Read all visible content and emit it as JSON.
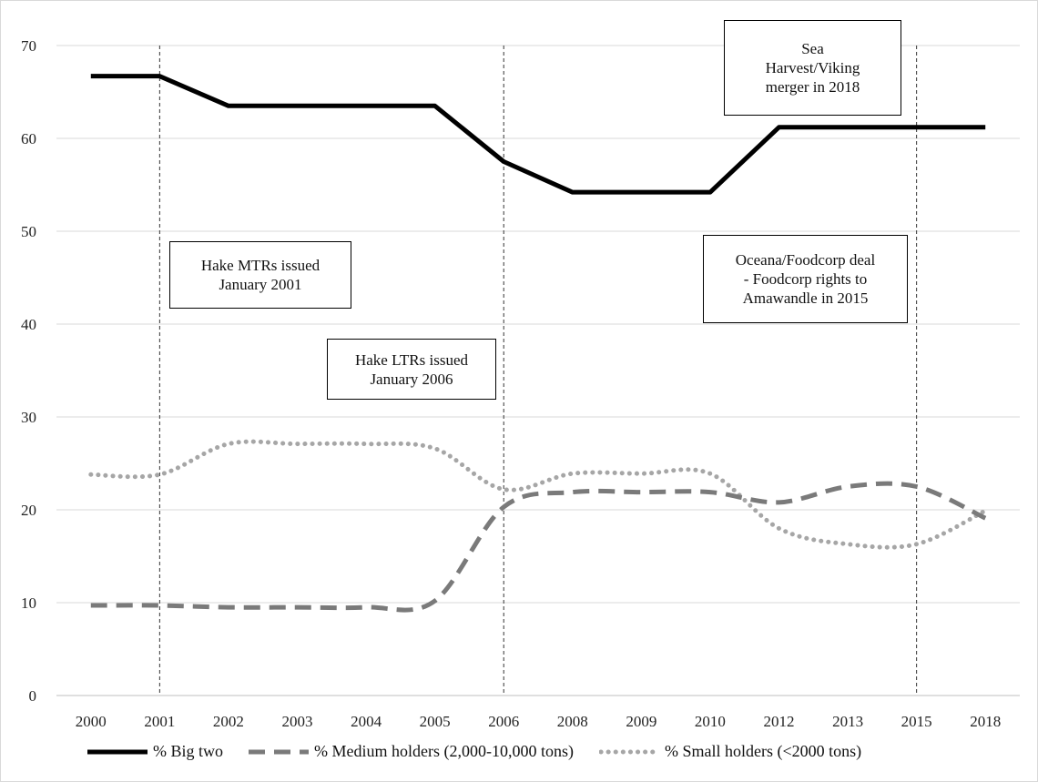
{
  "chart_data": {
    "type": "line",
    "categories": [
      "2000",
      "2001",
      "2002",
      "2003",
      "2004",
      "2005",
      "2006",
      "2008",
      "2009",
      "2010",
      "2012",
      "2013",
      "2015",
      "2018"
    ],
    "ylim": [
      0,
      70
    ],
    "yticks": [
      0,
      10,
      20,
      30,
      40,
      50,
      60,
      70
    ],
    "grid": true,
    "legend_position": "bottom",
    "series": [
      {
        "name": "% Big two",
        "style": "solid",
        "color": "#000000",
        "values": [
          66.7,
          66.7,
          63.5,
          63.5,
          63.5,
          63.5,
          57.5,
          54.2,
          54.2,
          54.2,
          61.2,
          61.2,
          61.2,
          61.2
        ]
      },
      {
        "name": "% Medium holders (2,000-10,000 tons)",
        "style": "dashed",
        "color": "#7a7a7a",
        "values": [
          9.7,
          9.7,
          9.5,
          9.5,
          9.5,
          10.2,
          20.3,
          21.9,
          21.9,
          21.9,
          20.8,
          22.5,
          22.5,
          19.1
        ]
      },
      {
        "name": "% Small holders (<2000 tons)",
        "style": "dotted",
        "color": "#a6a6a6",
        "values": [
          23.8,
          23.8,
          27.1,
          27.1,
          27.1,
          26.6,
          22.2,
          23.9,
          23.9,
          23.9,
          18.0,
          16.3,
          16.3,
          19.9
        ]
      }
    ],
    "vertical_markers": [
      "2001",
      "2006",
      "2015"
    ],
    "annotations": [
      {
        "lines": [
          "Sea",
          "Harvest/Viking",
          "merger in 2018"
        ]
      },
      {
        "lines": [
          "Hake MTRs issued",
          "January 2001"
        ]
      },
      {
        "lines": [
          "Oceana/Foodcorp deal",
          "- Foodcorp rights to",
          "Amawandle in 2015"
        ]
      },
      {
        "lines": [
          "Hake LTRs issued",
          "January 2006"
        ]
      }
    ]
  }
}
